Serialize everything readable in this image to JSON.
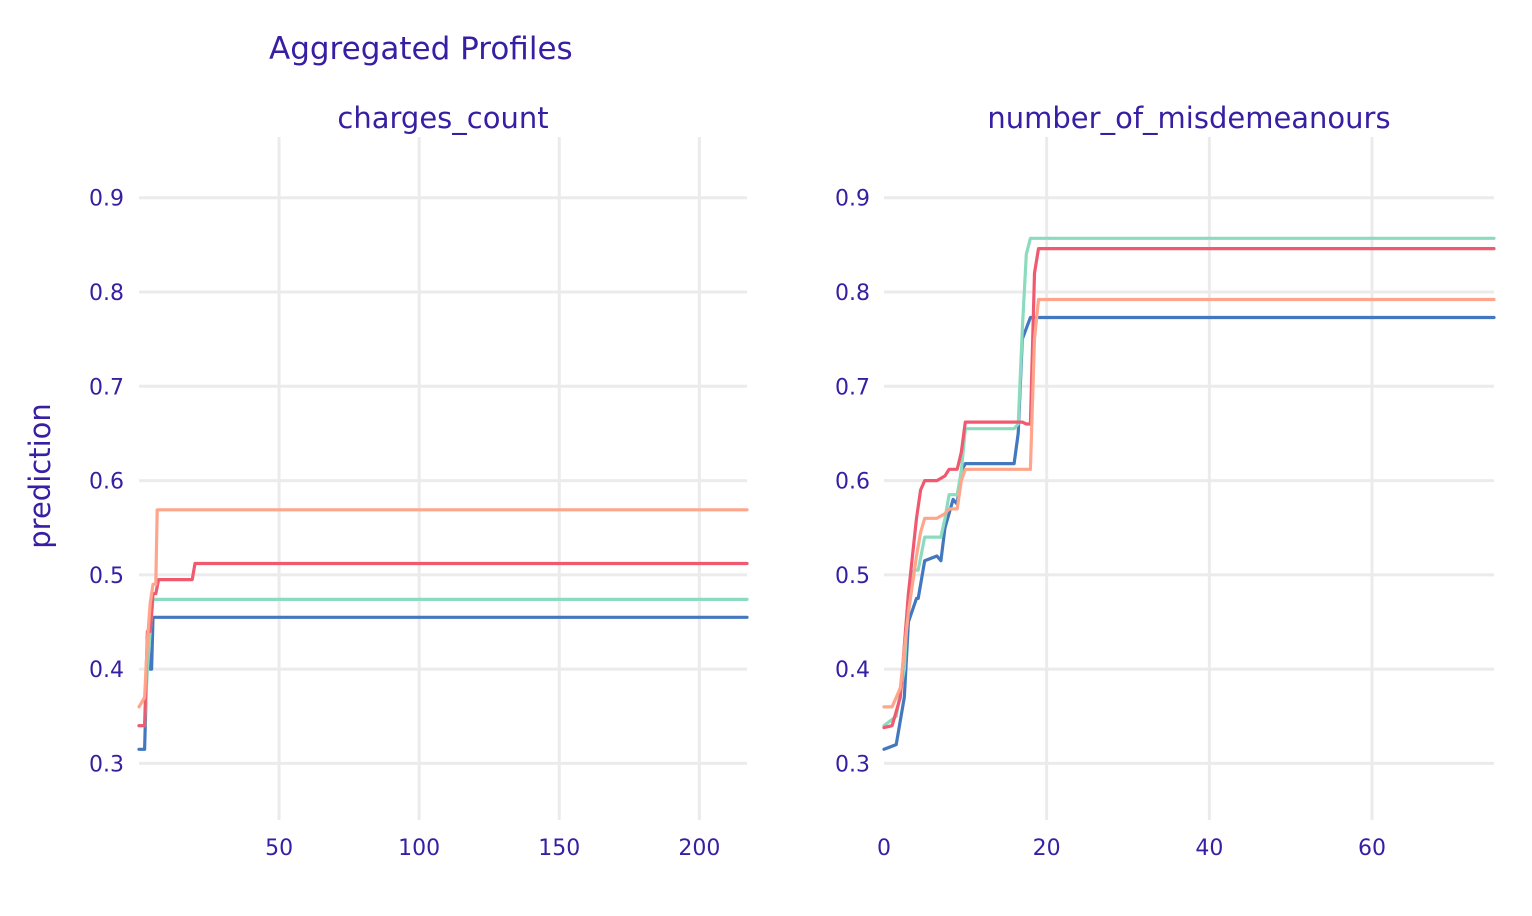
{
  "title": "Aggregated Profiles",
  "ylabel": "prediction",
  "colors": {
    "text": "#371ea3",
    "grid": "#ebebeb"
  },
  "chart_data": [
    {
      "type": "line",
      "title": "charges_count",
      "xlabel": "",
      "ylabel": "prediction",
      "xlim": [
        0,
        217
      ],
      "ylim": [
        0.24,
        0.94
      ],
      "xticks": [
        50,
        100,
        150,
        200
      ],
      "xtick_labels": [
        "50",
        "100",
        "150",
        "200"
      ],
      "yticks": [
        0.3,
        0.4,
        0.5,
        0.6,
        0.7,
        0.8,
        0.9
      ],
      "ytick_labels": [
        "0.3",
        "0.4",
        "0.5",
        "0.6",
        "0.7",
        "0.8",
        "0.9"
      ],
      "grid": true,
      "series": [
        {
          "color": "#4378bf",
          "x": [
            0,
            2,
            2.5,
            3,
            4,
            4.5,
            5,
            217
          ],
          "y": [
            0.315,
            0.315,
            0.37,
            0.435,
            0.4,
            0.4,
            0.455,
            0.455
          ]
        },
        {
          "color": "#8bdcbe",
          "x": [
            0,
            2,
            3,
            4,
            5,
            217
          ],
          "y": [
            0.34,
            0.34,
            0.4,
            0.44,
            0.474,
            0.474
          ]
        },
        {
          "color": "#f05a71",
          "x": [
            0,
            2,
            3,
            4,
            5,
            6,
            7,
            19,
            20,
            217
          ],
          "y": [
            0.34,
            0.34,
            0.44,
            0.44,
            0.48,
            0.48,
            0.495,
            0.495,
            0.512,
            0.512
          ]
        },
        {
          "color": "#ffa58c",
          "x": [
            0,
            2,
            3,
            4,
            5,
            6,
            6.5,
            217
          ],
          "y": [
            0.36,
            0.37,
            0.43,
            0.47,
            0.49,
            0.49,
            0.569,
            0.569
          ]
        }
      ]
    },
    {
      "type": "line",
      "title": "number_of_misdemeanours",
      "xlabel": "",
      "ylabel": "",
      "xlim": [
        0,
        75
      ],
      "ylim": [
        0.24,
        0.94
      ],
      "xticks": [
        0,
        20,
        40,
        60
      ],
      "xtick_labels": [
        "0",
        "20",
        "40",
        "60"
      ],
      "yticks": [
        0.3,
        0.4,
        0.5,
        0.6,
        0.7,
        0.8,
        0.9
      ],
      "ytick_labels": [
        "0.3",
        "0.4",
        "0.5",
        "0.6",
        "0.7",
        "0.8",
        "0.9"
      ],
      "grid": true,
      "series": [
        {
          "color": "#4378bf",
          "x": [
            0,
            1.5,
            2.5,
            3,
            4,
            4.2,
            5,
            6.5,
            7,
            7.5,
            8.5,
            9,
            9.5,
            10,
            16,
            16.5,
            17,
            18,
            75
          ],
          "y": [
            0.315,
            0.32,
            0.37,
            0.45,
            0.475,
            0.475,
            0.515,
            0.52,
            0.515,
            0.55,
            0.58,
            0.575,
            0.61,
            0.618,
            0.618,
            0.65,
            0.75,
            0.773,
            0.773
          ]
        },
        {
          "color": "#8bdcbe",
          "x": [
            0,
            1.5,
            2.5,
            3,
            3.7,
            4.2,
            5,
            7,
            7.5,
            8,
            9,
            9.5,
            10,
            16,
            16.5,
            17,
            17.5,
            18,
            75
          ],
          "y": [
            0.34,
            0.35,
            0.4,
            0.48,
            0.505,
            0.505,
            0.54,
            0.54,
            0.56,
            0.585,
            0.585,
            0.61,
            0.655,
            0.655,
            0.66,
            0.76,
            0.84,
            0.857,
            0.857
          ]
        },
        {
          "color": "#f05a71",
          "x": [
            0,
            1,
            2,
            3,
            4,
            4.5,
            5,
            6.5,
            7.5,
            8,
            9,
            9.5,
            10,
            17,
            17.5,
            18,
            18.5,
            19,
            75
          ],
          "y": [
            0.338,
            0.34,
            0.37,
            0.48,
            0.56,
            0.59,
            0.6,
            0.6,
            0.605,
            0.612,
            0.612,
            0.63,
            0.662,
            0.662,
            0.66,
            0.66,
            0.82,
            0.846,
            0.846
          ]
        },
        {
          "color": "#ffa58c",
          "x": [
            0,
            1,
            2,
            3,
            4,
            4.5,
            5,
            6.5,
            7.5,
            8,
            9,
            9.5,
            10,
            18,
            18.5,
            19,
            75
          ],
          "y": [
            0.36,
            0.36,
            0.38,
            0.46,
            0.52,
            0.545,
            0.56,
            0.56,
            0.565,
            0.57,
            0.57,
            0.6,
            0.612,
            0.612,
            0.75,
            0.792,
            0.792
          ]
        }
      ]
    }
  ]
}
